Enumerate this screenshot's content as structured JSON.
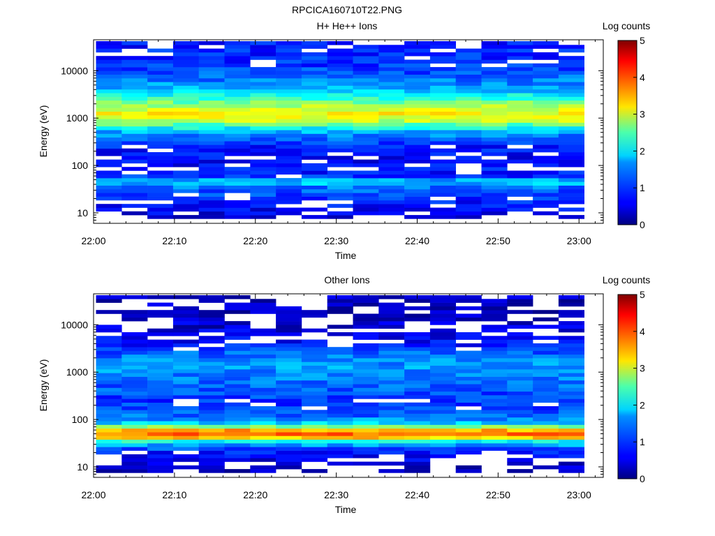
{
  "page_title": "RPCICA160710T22.PNG",
  "chart_data": [
    {
      "type": "heatmap",
      "title": "H+ He++ Ions",
      "xlabel": "Time",
      "ylabel": "Energy (eV)",
      "x_ticks": [
        "22:00",
        "22:10",
        "22:20",
        "22:30",
        "22:40",
        "22:50",
        "23:00"
      ],
      "x_range": [
        "22:00",
        "23:03"
      ],
      "y_ticks": [
        "10",
        "100",
        "1000",
        "10000"
      ],
      "y_range": [
        6,
        45000
      ],
      "y_scale": "log",
      "colorbar": {
        "label": "Log counts",
        "range": [
          0,
          5
        ],
        "ticks": [
          "0",
          "1",
          "2",
          "3",
          "4",
          "5"
        ]
      },
      "profile": {
        "energy_eV": [
          7,
          9,
          12,
          15,
          20,
          27,
          35,
          45,
          60,
          80,
          110,
          150,
          200,
          280,
          380,
          520,
          700,
          950,
          1300,
          1800,
          2500,
          3400,
          4700,
          6500,
          9000,
          12500,
          17000,
          24000,
          33000,
          42000
        ],
        "log_counts": [
          0.3,
          0.5,
          0.6,
          0.7,
          0.8,
          1.0,
          1.2,
          1.7,
          0.8,
          0.7,
          0.6,
          0.6,
          0.7,
          0.8,
          1.1,
          1.5,
          2.2,
          3.0,
          3.1,
          2.7,
          2.2,
          1.7,
          1.4,
          1.2,
          1.0,
          0.9,
          0.8,
          0.8,
          0.7,
          0.7
        ]
      }
    },
    {
      "type": "heatmap",
      "title": "Other Ions",
      "xlabel": "Time",
      "ylabel": "Energy (eV)",
      "x_ticks": [
        "22:00",
        "22:10",
        "22:20",
        "22:30",
        "22:40",
        "22:50",
        "23:00"
      ],
      "x_range": [
        "22:00",
        "23:03"
      ],
      "y_ticks": [
        "10",
        "100",
        "1000",
        "10000"
      ],
      "y_range": [
        6,
        45000
      ],
      "y_scale": "log",
      "colorbar": {
        "label": "Log counts",
        "range": [
          0,
          5
        ],
        "ticks": [
          "0",
          "1",
          "2",
          "3",
          "4",
          "5"
        ]
      },
      "profile": {
        "energy_eV": [
          7,
          9,
          12,
          15,
          20,
          27,
          35,
          45,
          60,
          80,
          110,
          150,
          200,
          280,
          380,
          520,
          700,
          950,
          1300,
          1800,
          2500,
          3400,
          4700,
          6500,
          9000,
          12500,
          17000,
          24000,
          33000,
          42000
        ],
        "log_counts": [
          0.2,
          0.3,
          0.4,
          0.5,
          0.7,
          1.2,
          2.0,
          4.0,
          3.5,
          1.8,
          1.2,
          1.0,
          0.9,
          0.9,
          1.0,
          1.1,
          1.2,
          1.3,
          1.4,
          1.3,
          1.1,
          0.8,
          0.6,
          0.5,
          0.4,
          0.4,
          0.3,
          0.3,
          0.3,
          0.3
        ]
      }
    }
  ]
}
